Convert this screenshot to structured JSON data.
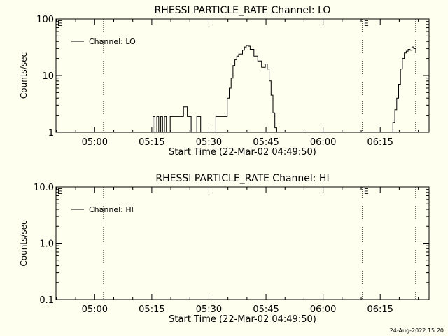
{
  "footer_timestamp": "24-Aug-2022 15:20",
  "chart_data": [
    {
      "type": "line",
      "title": "RHESSI PARTICLE_RATE Channel: LO",
      "xlabel": "Start Time (22-Mar-02 04:49:50)",
      "ylabel": "Counts/sec",
      "x_tick_labels": [
        "05:00",
        "05:15",
        "05:30",
        "05:45",
        "06:00",
        "06:15"
      ],
      "x_tick_minutes_after_0449_50": [
        10.17,
        25.17,
        40.17,
        55.17,
        70.17,
        85.17
      ],
      "x_range_minutes": [
        0,
        98
      ],
      "y_scale": "log",
      "ylim": [
        1,
        100
      ],
      "y_tick_labels": [
        "1",
        "10",
        "100"
      ],
      "legend": "top-left",
      "series": [
        {
          "name": "Channel: LO",
          "x": [
            25.0,
            25.5,
            26.0,
            26.5,
            27.0,
            27.5,
            28.0,
            28.5,
            29.0,
            29.5,
            30.0,
            31.0,
            32.0,
            33.0,
            33.5,
            34.0,
            34.5,
            35.0,
            35.5,
            36.0,
            37.0,
            38.0,
            38.5,
            39.0,
            40.0,
            41.0,
            42.0,
            43.0,
            44.0,
            45.0,
            45.5,
            46.0,
            46.5,
            47.0,
            47.5,
            48.0,
            49.0,
            49.5,
            50.0,
            50.5,
            51.0,
            52.0,
            53.0,
            54.0,
            55.0,
            55.5,
            56.0,
            56.5,
            57.0,
            57.5,
            58.0,
            58.5,
            59.0,
            59.5,
            60.0,
            60.5,
            61.0,
            61.5,
            62.0,
            63.0,
            63.5,
            64.0,
            64.5,
            65.0,
            66.0,
            67.0,
            68.0,
            69.0,
            70.0,
            71.0,
            72.0,
            73.0,
            74.0,
            75.0,
            76.0,
            77.0,
            78.0,
            79.0,
            80.0,
            81.0,
            82.0,
            83.0,
            84.0,
            85.0,
            86.0,
            87.0,
            88.0,
            88.5,
            89.0,
            89.5,
            90.0,
            90.5,
            91.0,
            91.5,
            92.0,
            92.5,
            93.0,
            93.5,
            94.0,
            94.5
          ],
          "values": [
            1,
            1.9,
            1,
            1.9,
            1,
            1.9,
            1,
            1.9,
            1,
            1,
            1.9,
            1.9,
            1.9,
            1.9,
            2.8,
            2.8,
            1.9,
            1.9,
            1,
            1,
            1.9,
            1,
            1,
            1,
            1,
            1,
            1.9,
            1.9,
            1.9,
            4,
            6,
            9,
            15,
            19,
            22,
            24,
            28,
            32,
            34,
            33,
            29,
            22,
            18,
            14,
            16,
            13,
            8,
            4.5,
            2.2,
            1.2,
            1,
            1,
            1,
            1,
            1,
            1,
            1,
            1,
            1,
            1,
            1,
            1,
            1,
            1,
            1,
            1,
            1,
            1,
            1,
            1,
            1,
            1,
            1,
            1,
            1,
            1,
            1,
            1,
            1,
            1,
            1,
            1,
            1,
            1,
            1,
            1,
            1,
            1.5,
            2.5,
            4,
            7,
            13,
            20,
            25,
            27,
            29,
            28,
            32,
            30,
            26
          ]
        }
      ],
      "markers": [
        {
          "minute": 12.5,
          "label": ""
        },
        {
          "minute": 80.5,
          "label": "E"
        },
        {
          "minute": 94.5,
          "label": ""
        }
      ],
      "left_edge_label": "E"
    },
    {
      "type": "line",
      "title": "RHESSI PARTICLE_RATE Channel: HI",
      "xlabel": "Start Time (22-Mar-02 04:49:50)",
      "ylabel": "Counts/sec",
      "x_tick_labels": [
        "05:00",
        "05:15",
        "05:30",
        "05:45",
        "06:00",
        "06:15"
      ],
      "x_tick_minutes_after_0449_50": [
        10.17,
        25.17,
        40.17,
        55.17,
        70.17,
        85.17
      ],
      "x_range_minutes": [
        0,
        98
      ],
      "y_scale": "log",
      "ylim": [
        0.1,
        10
      ],
      "y_tick_labels": [
        "0.1",
        "1.0",
        "10.0"
      ],
      "legend": "top-left",
      "series": [
        {
          "name": "Channel: HI",
          "x": [],
          "values": []
        }
      ],
      "markers": [
        {
          "minute": 12.5,
          "label": ""
        },
        {
          "minute": 80.5,
          "label": "E"
        },
        {
          "minute": 94.5,
          "label": ""
        }
      ],
      "left_edge_label": "E"
    }
  ]
}
